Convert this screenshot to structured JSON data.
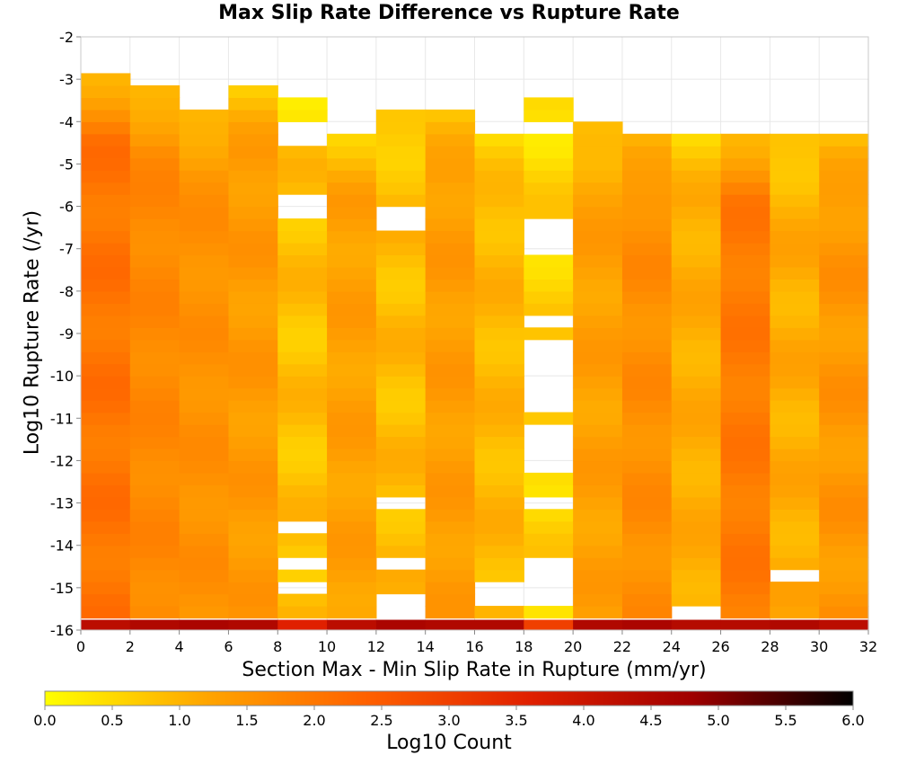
{
  "chart_data": {
    "type": "heatmap",
    "title": "Max Slip Rate Difference vs Rupture Rate",
    "xlabel": "Section Max - Min Slip Rate in Rupture (mm/yr)",
    "ylabel": "Log10 Rupture Rate (/yr)",
    "colorbar_label": "Log10 Count",
    "xlim": [
      0,
      32
    ],
    "ylim": [
      -16,
      -2
    ],
    "x_ticks": [
      "0",
      "2",
      "4",
      "6",
      "8",
      "10",
      "12",
      "14",
      "16",
      "18",
      "20",
      "22",
      "24",
      "26",
      "28",
      "30",
      "32"
    ],
    "y_ticks": [
      "-2",
      "-3",
      "-4",
      "-5",
      "-6",
      "-7",
      "-8",
      "-9",
      "-10",
      "-11",
      "-12",
      "-13",
      "-14",
      "-15",
      "-16"
    ],
    "colorbar_ticks": [
      "0.0",
      "0.5",
      "1.0",
      "1.5",
      "2.0",
      "2.5",
      "3.0",
      "3.5",
      "4.0",
      "4.5",
      "5.0",
      "5.5",
      "6.0"
    ],
    "color_range": [
      0,
      6
    ],
    "colormap": [
      "#ffff00",
      "#ffa500",
      "#ff6000",
      "#e02000",
      "#a00000",
      "#000000"
    ],
    "x_bin_width": 2,
    "y_bin_height": 0.2857,
    "y_bins_start": -16,
    "columns": [
      {
        "x": 1,
        "y_top": -3.0,
        "base": 2.05,
        "amp": 0.35
      },
      {
        "x": 3,
        "y_top": -3.3,
        "base": 1.7,
        "amp": 0.25
      },
      {
        "x": 5,
        "y_top": -3.8,
        "base": 1.55,
        "amp": 0.25
      },
      {
        "x": 7,
        "y_top": -3.3,
        "base": 1.4,
        "amp": 0.3
      },
      {
        "x": 9,
        "y_top": -3.6,
        "base": 0.85,
        "amp": 0.4
      },
      {
        "x": 11,
        "y_top": -4.4,
        "base": 1.3,
        "amp": 0.3
      },
      {
        "x": 13,
        "y_top": -3.8,
        "base": 0.9,
        "amp": 0.4
      },
      {
        "x": 15,
        "y_top": -3.8,
        "base": 1.35,
        "amp": 0.3
      },
      {
        "x": 17,
        "y_top": -4.4,
        "base": 0.95,
        "amp": 0.35
      },
      {
        "x": 19,
        "y_top": -3.6,
        "base": 0.6,
        "amp": 0.4
      },
      {
        "x": 21,
        "y_top": -4.1,
        "base": 1.3,
        "amp": 0.3
      },
      {
        "x": 23,
        "y_top": -4.4,
        "base": 1.6,
        "amp": 0.3
      },
      {
        "x": 25,
        "y_top": -4.4,
        "base": 1.1,
        "amp": 0.3
      },
      {
        "x": 27,
        "y_top": -4.4,
        "base": 1.95,
        "amp": 0.3
      },
      {
        "x": 29,
        "y_top": -4.4,
        "base": 1.1,
        "amp": 0.35
      },
      {
        "x": 31,
        "y_top": -4.4,
        "base": 1.45,
        "amp": 0.35
      }
    ],
    "gaps": [
      {
        "x": 9,
        "y": [
          -6.2,
          -4.3,
          -6.0,
          -13.7,
          -14.4,
          -15.1
        ]
      },
      {
        "x": 13,
        "y": [
          -6.2,
          -6.5,
          -13.1,
          -14.4,
          -15.3,
          -15.5
        ]
      },
      {
        "x": 17,
        "y": [
          -15.0,
          -15.3
        ]
      },
      {
        "x": 19,
        "y": [
          -4.1,
          -6.5,
          -6.8,
          -7.0,
          -8.7,
          -9.3,
          -9.7,
          -10.0,
          -10.3,
          -10.6,
          -11.4,
          -11.7,
          -12.0,
          -13.0,
          -14.5,
          -14.8,
          -15.1,
          -15.4
        ]
      },
      {
        "x": 25,
        "y": [
          -15.6
        ]
      },
      {
        "x": 29,
        "y": [
          -14.8
        ]
      }
    ],
    "bottom_row": {
      "y": -15.9,
      "values": [
        4.3,
        4.5,
        4.6,
        4.5,
        3.6,
        4.3,
        4.6,
        4.5,
        4.5,
        3.0,
        4.5,
        4.6,
        4.4,
        4.4,
        4.5,
        4.3
      ]
    }
  }
}
